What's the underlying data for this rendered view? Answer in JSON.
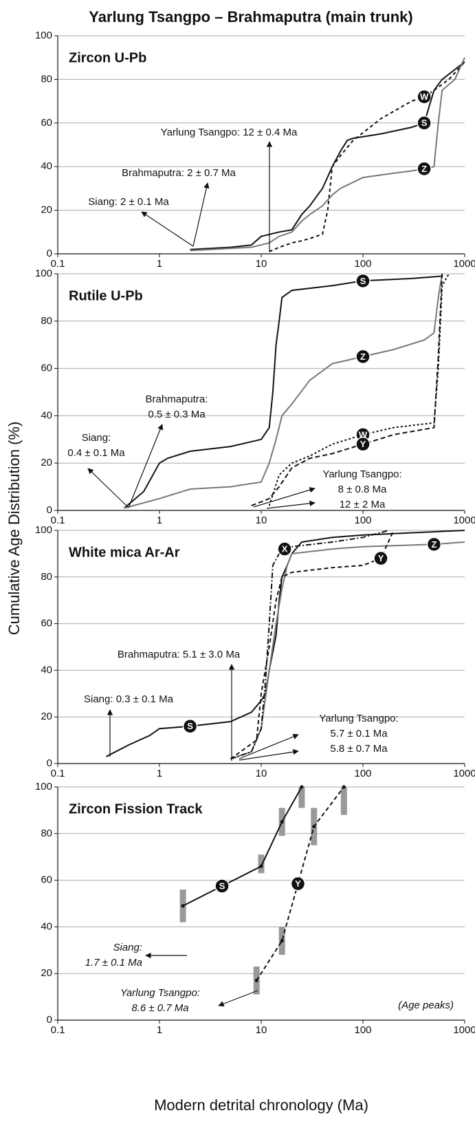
{
  "title": "Yarlung Tsangpo – Brahmaputra (main trunk)",
  "ylabel": "Cumulative Age Distribution (%)",
  "xlabel": "Modern detrital chronology (Ma)",
  "chart_data": [
    {
      "type": "line",
      "title": "Zircon U-Pb",
      "log_x": true,
      "grid": true,
      "xlim": [
        0.1,
        1000
      ],
      "ylim": [
        0,
        100
      ],
      "xticks": [
        0.1,
        1,
        10,
        100,
        1000
      ],
      "yticks": [
        0,
        20,
        40,
        60,
        80,
        100
      ],
      "series": [
        {
          "name": "W",
          "color": "#111111",
          "dash": "5,4",
          "x": [
            12,
            15,
            20,
            25,
            30,
            40,
            45,
            50,
            60,
            80,
            150,
            300,
            400,
            500,
            700,
            1000
          ],
          "values": [
            1,
            3,
            5,
            6,
            7,
            9,
            20,
            40,
            45,
            52,
            62,
            70,
            72,
            75,
            80,
            88
          ]
        },
        {
          "name": "S",
          "color": "#111111",
          "dash": "none",
          "x": [
            2,
            5,
            8,
            10,
            15,
            20,
            25,
            30,
            40,
            50,
            60,
            70,
            80,
            150,
            300,
            400,
            500,
            600,
            1000
          ],
          "values": [
            2,
            3,
            4,
            8,
            10,
            11,
            18,
            22,
            30,
            40,
            47,
            52,
            53,
            55,
            58,
            60,
            75,
            80,
            88
          ]
        },
        {
          "name": "Z",
          "color": "#777777",
          "dash": "none",
          "x": [
            2,
            8,
            12,
            15,
            20,
            25,
            30,
            40,
            50,
            60,
            100,
            200,
            300,
            400,
            500,
            550,
            600,
            800,
            1000
          ],
          "values": [
            1.5,
            3,
            5,
            8,
            10,
            15,
            18,
            22,
            27,
            30,
            35,
            37,
            38,
            39,
            40,
            60,
            75,
            80,
            90
          ]
        }
      ],
      "annotations": [
        {
          "lines": [
            "Yarlung Tsangpo: 12 ± 0.4 Ma"
          ]
        },
        {
          "lines": [
            "Brahmaputra: 2 ± 0.7 Ma"
          ]
        },
        {
          "lines": [
            "Siang: 2 ± 0.1 Ma"
          ]
        }
      ]
    },
    {
      "type": "line",
      "title": "Rutile U-Pb",
      "log_x": true,
      "grid": true,
      "xlim": [
        0.1,
        1000
      ],
      "ylim": [
        0,
        100
      ],
      "xticks": [
        0.1,
        1,
        10,
        100,
        1000
      ],
      "yticks": [
        0,
        20,
        40,
        60,
        80,
        100
      ],
      "series": [
        {
          "name": "S",
          "color": "#111111",
          "dash": "none",
          "x": [
            0.45,
            0.7,
            1,
            1.2,
            2,
            5,
            10,
            12,
            13,
            14,
            15,
            16,
            20,
            50,
            100,
            300,
            600
          ],
          "values": [
            1,
            8,
            20,
            22,
            25,
            27,
            30,
            35,
            50,
            70,
            80,
            90,
            93,
            95,
            97,
            98,
            99
          ]
        },
        {
          "name": "Z",
          "color": "#777777",
          "dash": "none",
          "x": [
            0.45,
            1,
            2,
            5,
            10,
            12,
            14,
            16,
            20,
            30,
            50,
            100,
            200,
            400,
            500,
            550,
            600
          ],
          "values": [
            1,
            5,
            9,
            10,
            12,
            20,
            30,
            40,
            45,
            55,
            62,
            65,
            68,
            72,
            75,
            90,
            100
          ]
        },
        {
          "name": "W",
          "color": "#111111",
          "dash": "3,3",
          "x": [
            12,
            15,
            20,
            30,
            50,
            100,
            200,
            500,
            550,
            600,
            700
          ],
          "values": [
            2,
            15,
            20,
            23,
            28,
            32,
            35,
            37,
            60,
            95,
            100
          ]
        },
        {
          "name": "Y",
          "color": "#111111",
          "dash": "7,4",
          "x": [
            8,
            12,
            15,
            20,
            30,
            50,
            100,
            200,
            500,
            550,
            600
          ],
          "values": [
            2,
            5,
            10,
            18,
            22,
            24,
            28,
            32,
            35,
            65,
            100
          ]
        }
      ],
      "annotations": [
        {
          "lines": [
            "Brahmaputra:",
            "0.5 ± 0.3 Ma"
          ]
        },
        {
          "lines": [
            "Siang:",
            "0.4 ± 0.1 Ma"
          ]
        },
        {
          "lines": [
            "Yarlung Tsangpo:",
            "8 ± 0.8 Ma",
            "12 ± 2    Ma"
          ]
        }
      ]
    },
    {
      "type": "line",
      "title": "White mica Ar-Ar",
      "log_x": true,
      "grid": true,
      "xlim": [
        0.1,
        1000
      ],
      "ylim": [
        0,
        100
      ],
      "xticks": [
        0.1,
        1,
        10,
        100,
        1000
      ],
      "yticks": [
        0,
        20,
        40,
        60,
        80,
        100
      ],
      "series": [
        {
          "name": "S",
          "color": "#111111",
          "dash": "none",
          "x": [
            0.3,
            0.5,
            0.8,
            1,
            2,
            5,
            8,
            10,
            11,
            12,
            14,
            15,
            16,
            18,
            20,
            25,
            50,
            100,
            1000
          ],
          "values": [
            3,
            8,
            12,
            15,
            16,
            18,
            22,
            27,
            30,
            40,
            55,
            70,
            80,
            85,
            90,
            95,
            97,
            98,
            100
          ]
        },
        {
          "name": "Z",
          "color": "#777777",
          "dash": "none",
          "x": [
            5,
            8,
            10,
            12,
            14,
            16,
            18,
            20,
            50,
            100,
            500,
            1000
          ],
          "values": [
            2,
            5,
            15,
            40,
            60,
            75,
            85,
            90,
            92,
            93,
            94,
            95
          ]
        },
        {
          "name": "X",
          "color": "#111111",
          "dash": "8,3,2,3",
          "x": [
            5,
            8,
            10,
            11,
            12,
            13,
            15,
            17,
            20,
            50,
            100,
            180
          ],
          "values": [
            2,
            5,
            15,
            35,
            60,
            85,
            90,
            92,
            93,
            95,
            97,
            100
          ]
        },
        {
          "name": "Y",
          "color": "#111111",
          "dash": "6,4",
          "x": [
            5,
            9,
            10,
            12,
            14,
            16,
            20,
            50,
            100,
            150,
            200
          ],
          "values": [
            2,
            10,
            30,
            50,
            70,
            80,
            82,
            84,
            85,
            88,
            100
          ]
        }
      ],
      "annotations": [
        {
          "lines": [
            "Brahmaputra: 5.1 ± 3.0 Ma"
          ]
        },
        {
          "lines": [
            "Siang: 0.3 ± 0.1 Ma"
          ]
        },
        {
          "lines": [
            "Yarlung Tsangpo:",
            "5.7 ± 0.1 Ma",
            "5.8 ± 0.7 Ma"
          ]
        }
      ]
    },
    {
      "type": "line",
      "title": "Zircon Fission Track",
      "log_x": true,
      "grid": true,
      "font_style": "italic",
      "xlim": [
        0.1,
        1000
      ],
      "ylim": [
        0,
        100
      ],
      "xticks": [
        0.1,
        1,
        10,
        100,
        1000
      ],
      "yticks": [
        0,
        20,
        40,
        60,
        80,
        100
      ],
      "series": [
        {
          "name": "S",
          "color": "#111111",
          "dash": "none",
          "x": [
            1.7,
            10,
            16,
            25
          ],
          "values": [
            49,
            66,
            85,
            100
          ],
          "range_low": [
            42,
            63,
            79,
            91
          ],
          "range_high": [
            56,
            71,
            91,
            100
          ]
        },
        {
          "name": "Y",
          "color": "#111111",
          "dash": "6,4",
          "x": [
            9,
            16,
            33,
            65
          ],
          "values": [
            17,
            34,
            83,
            100
          ],
          "range_low": [
            11,
            28,
            75,
            88
          ],
          "range_high": [
            23,
            40,
            91,
            100
          ]
        }
      ],
      "annotations": [
        {
          "lines": [
            "Siang:",
            "1.7 ± 0.1 Ma"
          ]
        },
        {
          "lines": [
            "Yarlung Tsangpo:",
            "8.6 ± 0.7 Ma"
          ]
        },
        {
          "lines": [
            "(Age peaks)"
          ]
        }
      ]
    }
  ]
}
